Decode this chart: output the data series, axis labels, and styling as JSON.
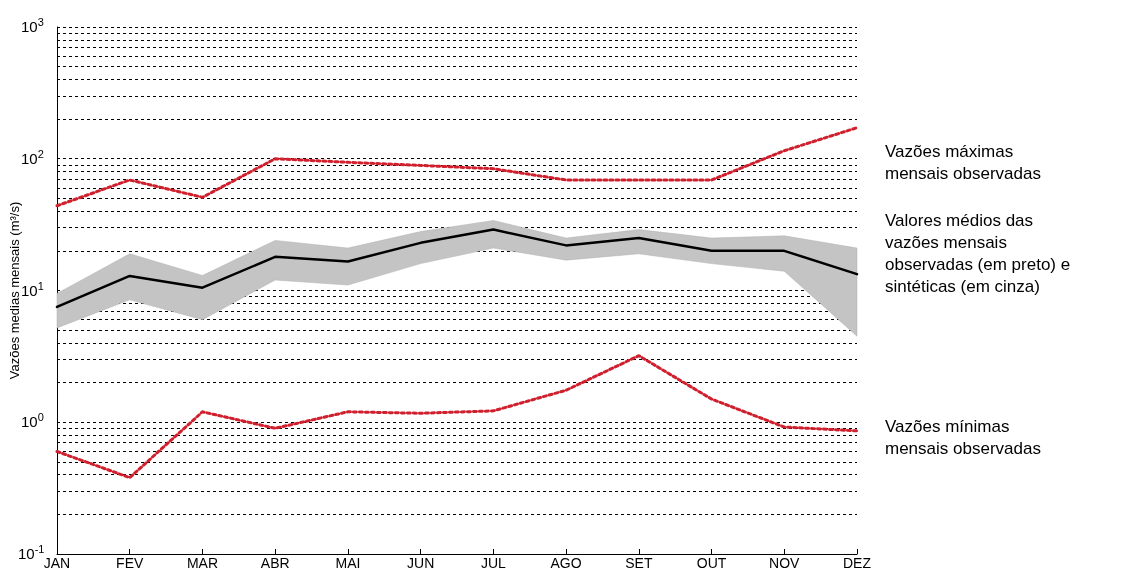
{
  "chart_data": {
    "type": "line",
    "ylabel": "Vazões medias mensais (m³/s)",
    "categories": [
      "JAN",
      "FEV",
      "MAR",
      "ABR",
      "MAI",
      "JUN",
      "JUL",
      "AGO",
      "SET",
      "OUT",
      "NOV",
      "DEZ"
    ],
    "series": [
      {
        "color": "#d0202e",
        "line_style": "dotted",
        "values": [
          44,
          69,
          51,
          100,
          94,
          89,
          84,
          69,
          69,
          69,
          115,
          172
        ]
      },
      {
        "color": "#000000",
        "line_style": "solid",
        "values": [
          7.5,
          12.9,
          10.5,
          18,
          16.6,
          23,
          29,
          22,
          25,
          20,
          20,
          13.3
        ],
        "lower": [
          5.2,
          8.5,
          6,
          12,
          11,
          16,
          21,
          17,
          19,
          16,
          14,
          4.5
        ],
        "upper": [
          9.5,
          19,
          13,
          24,
          21,
          28,
          34,
          25,
          29,
          25,
          26,
          21
        ]
      },
      {
        "color": "#d0202e",
        "line_style": "dotted",
        "values": [
          0.6,
          0.38,
          1.2,
          0.9,
          1.2,
          1.17,
          1.22,
          1.75,
          3.2,
          1.5,
          0.92,
          0.86
        ]
      }
    ],
    "log": "y",
    "ylim": [
      0.1,
      1000
    ],
    "yticks": [
      {
        "value": 0.1,
        "label": "10$^{-1}$"
      },
      {
        "value": 0.2,
        "label": null
      },
      {
        "value": 0.3,
        "label": null
      },
      {
        "value": 0.4,
        "label": null
      },
      {
        "value": 0.5,
        "label": null
      },
      {
        "value": 0.6,
        "label": null
      },
      {
        "value": 0.7,
        "label": null
      },
      {
        "value": 0.8,
        "label": null
      },
      {
        "value": 0.9,
        "label": null
      },
      {
        "value": 1,
        "label": "10$^{0}$"
      },
      {
        "value": 2,
        "label": null
      },
      {
        "value": 3,
        "label": null
      },
      {
        "value": 4,
        "label": null
      },
      {
        "value": 5,
        "label": null
      },
      {
        "value": 6,
        "label": null
      },
      {
        "value": 7,
        "label": null
      },
      {
        "value": 8,
        "label": null
      },
      {
        "value": 9,
        "label": null
      },
      {
        "value": 10,
        "label": "10$^{1}$"
      },
      {
        "value": 20,
        "label": null
      },
      {
        "value": 30,
        "label": null
      },
      {
        "value": 40,
        "label": null
      },
      {
        "value": 50,
        "label": null
      },
      {
        "value": 60,
        "label": null
      },
      {
        "value": 70,
        "label": null
      },
      {
        "value": 80,
        "label": null
      },
      {
        "value": 90,
        "label": null
      },
      {
        "value": 100,
        "label": "10$^{2}$"
      },
      {
        "value": 200,
        "label": null
      },
      {
        "value": 300,
        "label": null
      },
      {
        "value": 400,
        "label": null
      },
      {
        "value": 500,
        "label": null
      },
      {
        "value": 600,
        "label": null
      },
      {
        "value": 700,
        "label": null
      },
      {
        "value": 800,
        "label": null
      },
      {
        "value": 900,
        "label": null
      },
      {
        "value": 1000,
        "label": "10$^{3}$"
      }
    ],
    "grid": "y",
    "marker": "none",
    "annotations": [
      "Vazões máximas mensais observadas",
      "Valores médios das vazões mensais observadas (em preto) e sintéticas (em cinza)",
      "Vazões mínimas mensais observadas"
    ]
  }
}
